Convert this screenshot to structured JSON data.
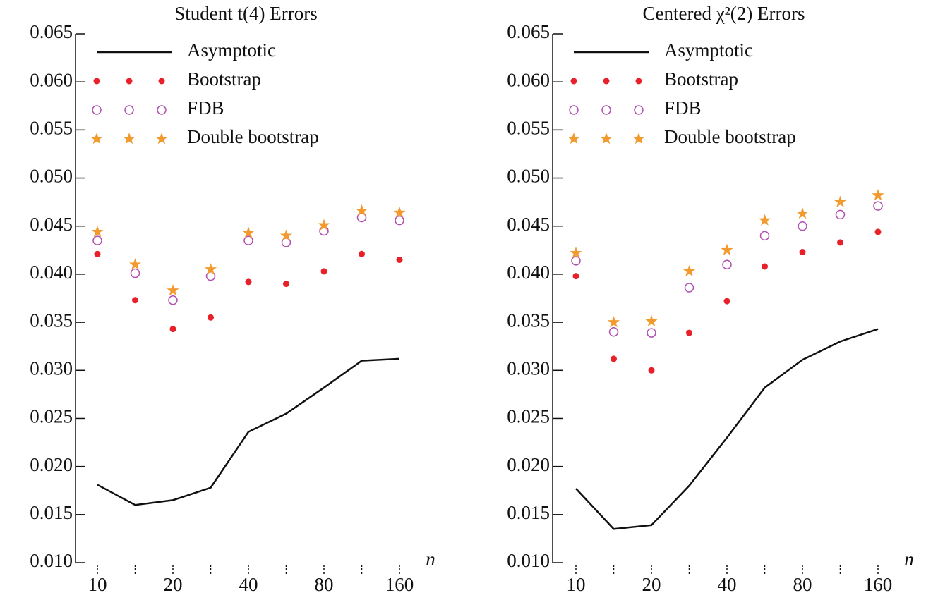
{
  "chart_data": [
    {
      "type": "line",
      "title": "Student t(4) Errors",
      "xlabel": "n",
      "categories": [
        "10",
        null,
        "20",
        null,
        "40",
        null,
        "80",
        null,
        "160"
      ],
      "series": [
        {
          "name": "Asymptotic",
          "color": "#111111",
          "marker": "line",
          "values": [
            0.0181,
            0.016,
            0.0165,
            0.0178,
            0.0236,
            0.0255,
            0.0282,
            0.031,
            0.0312
          ]
        },
        {
          "name": "Bootstrap",
          "color": "#e8202a",
          "marker": "dot",
          "values": [
            0.0421,
            0.0373,
            0.0343,
            0.0355,
            0.0392,
            0.039,
            0.0403,
            0.0421,
            0.0415
          ]
        },
        {
          "name": "FDB",
          "color": "#b050b0",
          "marker": "circle",
          "values": [
            0.0435,
            0.0401,
            0.0373,
            0.0398,
            0.0435,
            0.0433,
            0.0445,
            0.0459,
            0.0456
          ]
        },
        {
          "name": "Double bootstrap",
          "color": "#f29a2e",
          "marker": "star",
          "values": [
            0.0444,
            0.041,
            0.0383,
            0.0405,
            0.0443,
            0.044,
            0.0451,
            0.0466,
            0.0464
          ]
        }
      ],
      "ylim": [
        0.01,
        0.065
      ],
      "yticks": [
        {
          "value": 0.01,
          "label": "0.010"
        },
        {
          "value": 0.015,
          "label": "0.015"
        },
        {
          "value": 0.02,
          "label": "0.020"
        },
        {
          "value": 0.025,
          "label": "0.025"
        },
        {
          "value": 0.03,
          "label": "0.030"
        },
        {
          "value": 0.035,
          "label": "0.035"
        },
        {
          "value": 0.04,
          "label": "0.040"
        },
        {
          "value": 0.045,
          "label": "0.045"
        },
        {
          "value": 0.05,
          "label": "0.050"
        },
        {
          "value": 0.055,
          "label": "0.055"
        },
        {
          "value": 0.06,
          "label": "0.060"
        },
        {
          "value": 0.065,
          "label": "0.065"
        }
      ],
      "hline": 0.05,
      "legend": "upper left"
    },
    {
      "type": "line",
      "title": "Centered χ²(2) Errors",
      "xlabel": "n",
      "categories": [
        "10",
        null,
        "20",
        null,
        "40",
        null,
        "80",
        null,
        "160"
      ],
      "series": [
        {
          "name": "Asymptotic",
          "color": "#111111",
          "marker": "line",
          "values": [
            0.0177,
            0.0135,
            0.0139,
            0.018,
            0.023,
            0.0282,
            0.0311,
            0.033,
            0.0343
          ]
        },
        {
          "name": "Bootstrap",
          "color": "#e8202a",
          "marker": "dot",
          "values": [
            0.0398,
            0.0312,
            0.03,
            0.0339,
            0.0372,
            0.0408,
            0.0423,
            0.0433,
            0.0444
          ]
        },
        {
          "name": "FDB",
          "color": "#b050b0",
          "marker": "circle",
          "values": [
            0.0414,
            0.034,
            0.0339,
            0.0386,
            0.041,
            0.044,
            0.045,
            0.0462,
            0.0471
          ]
        },
        {
          "name": "Double bootstrap",
          "color": "#f29a2e",
          "marker": "star",
          "values": [
            0.0422,
            0.035,
            0.0351,
            0.0403,
            0.0425,
            0.0456,
            0.0463,
            0.0475,
            0.0482
          ]
        }
      ],
      "ylim": [
        0.01,
        0.065
      ],
      "yticks": [
        {
          "value": 0.01,
          "label": "0.010"
        },
        {
          "value": 0.015,
          "label": "0.015"
        },
        {
          "value": 0.02,
          "label": "0.020"
        },
        {
          "value": 0.025,
          "label": "0.025"
        },
        {
          "value": 0.03,
          "label": "0.030"
        },
        {
          "value": 0.035,
          "label": "0.035"
        },
        {
          "value": 0.04,
          "label": "0.040"
        },
        {
          "value": 0.045,
          "label": "0.045"
        },
        {
          "value": 0.05,
          "label": "0.050"
        },
        {
          "value": 0.055,
          "label": "0.055"
        },
        {
          "value": 0.06,
          "label": "0.060"
        },
        {
          "value": 0.065,
          "label": "0.065"
        }
      ],
      "hline": 0.05,
      "legend": "upper left"
    }
  ]
}
